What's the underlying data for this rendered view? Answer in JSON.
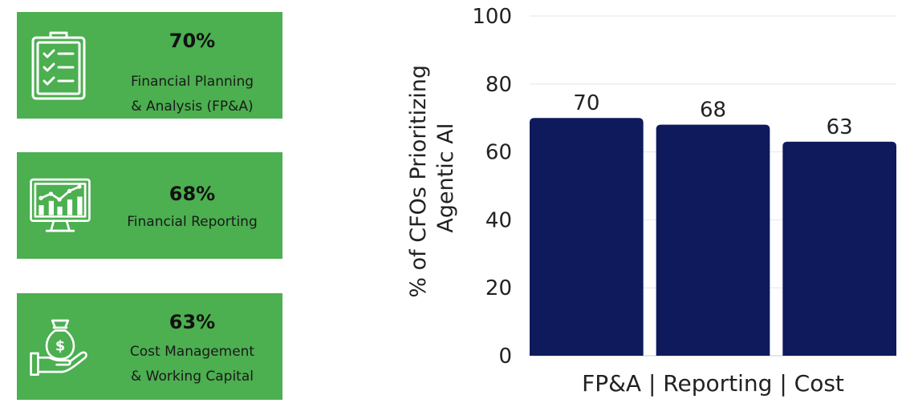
{
  "cards": [
    {
      "percent": "70%",
      "lines": [
        "Financial Planning",
        "& Analysis (FP&A)"
      ],
      "icon": "clipboard-checklist-icon"
    },
    {
      "percent": "68%",
      "lines": [
        "Financial Reporting"
      ],
      "icon": "monitor-chart-icon"
    },
    {
      "percent": "63%",
      "lines": [
        "Cost Management",
        "& Working Capital"
      ],
      "icon": "hand-money-bag-icon"
    }
  ],
  "colors": {
    "card_bg": "#4caf50",
    "bar": "#0e1a5c"
  },
  "chart_data": {
    "type": "bar",
    "categories": [
      "FP&A",
      "Reporting",
      "Cost"
    ],
    "values": [
      70,
      68,
      63
    ],
    "value_labels": [
      "70",
      "68",
      "63"
    ],
    "xlabel": "FP&A | Reporting | Cost",
    "ylabel_lines": [
      "% of CFOs Prioritizing",
      "Agentic AI"
    ],
    "ylim": [
      0,
      100
    ],
    "yticks": [
      0,
      20,
      40,
      60,
      80,
      100
    ],
    "grid": true
  }
}
